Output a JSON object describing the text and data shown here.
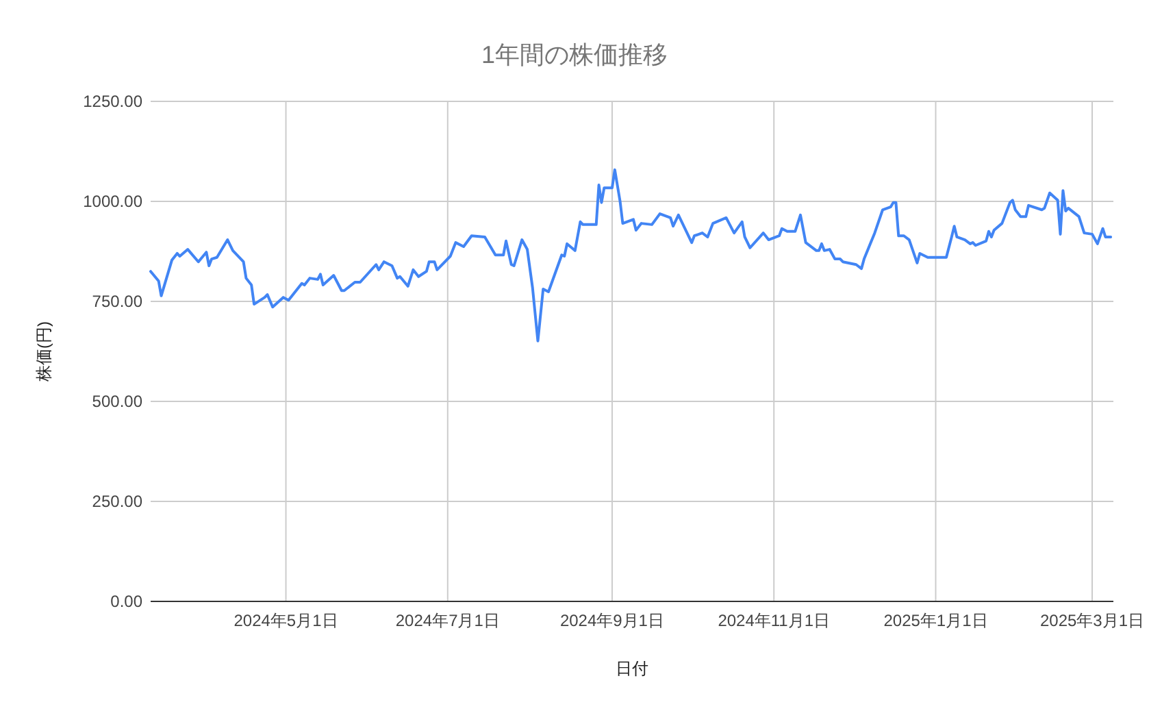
{
  "chart_data": {
    "type": "line",
    "title": "1年間の株価推移",
    "xlabel": "日付",
    "ylabel": "株価(円)",
    "x": [
      "2024-03-11",
      "2024-03-14",
      "2024-03-15",
      "2024-03-19",
      "2024-03-21",
      "2024-03-22",
      "2024-03-25",
      "2024-03-29",
      "2024-04-01",
      "2024-04-02",
      "2024-04-03",
      "2024-04-05",
      "2024-04-09",
      "2024-04-11",
      "2024-04-15",
      "2024-04-16",
      "2024-04-18",
      "2024-04-19",
      "2024-04-23",
      "2024-04-24",
      "2024-04-26",
      "2024-04-30",
      "2024-05-02",
      "2024-05-07",
      "2024-05-08",
      "2024-05-10",
      "2024-05-13",
      "2024-05-14",
      "2024-05-15",
      "2024-05-19",
      "2024-05-22",
      "2024-05-23",
      "2024-05-27",
      "2024-05-29",
      "2024-06-04",
      "2024-06-05",
      "2024-06-07",
      "2024-06-10",
      "2024-06-12",
      "2024-06-13",
      "2024-06-16",
      "2024-06-18",
      "2024-06-20",
      "2024-06-23",
      "2024-06-24",
      "2024-06-26",
      "2024-06-27",
      "2024-07-02",
      "2024-07-04",
      "2024-07-07",
      "2024-07-10",
      "2024-07-15",
      "2024-07-19",
      "2024-07-22",
      "2024-07-23",
      "2024-07-25",
      "2024-07-26",
      "2024-07-29",
      "2024-07-31",
      "2024-08-02",
      "2024-08-04",
      "2024-08-06",
      "2024-08-08",
      "2024-08-13",
      "2024-08-14",
      "2024-08-15",
      "2024-08-18",
      "2024-08-20",
      "2024-08-21",
      "2024-08-26",
      "2024-08-27",
      "2024-08-28",
      "2024-08-29",
      "2024-09-01",
      "2024-09-02",
      "2024-09-04",
      "2024-09-05",
      "2024-09-09",
      "2024-09-10",
      "2024-09-12",
      "2024-09-16",
      "2024-09-19",
      "2024-09-23",
      "2024-09-24",
      "2024-09-26",
      "2024-10-01",
      "2024-10-02",
      "2024-10-05",
      "2024-10-07",
      "2024-10-09",
      "2024-10-14",
      "2024-10-17",
      "2024-10-20",
      "2024-10-21",
      "2024-10-23",
      "2024-10-28",
      "2024-10-30",
      "2024-11-03",
      "2024-11-04",
      "2024-11-06",
      "2024-11-09",
      "2024-11-11",
      "2024-11-13",
      "2024-11-17",
      "2024-11-18",
      "2024-11-19",
      "2024-11-20",
      "2024-11-22",
      "2024-11-24",
      "2024-11-26",
      "2024-11-27",
      "2024-12-02",
      "2024-12-04",
      "2024-12-05",
      "2024-12-09",
      "2024-12-12",
      "2024-12-15",
      "2024-12-16",
      "2024-12-17",
      "2024-12-18",
      "2024-12-20",
      "2024-12-22",
      "2024-12-25",
      "2024-12-26",
      "2024-12-29",
      "2025-01-05",
      "2025-01-07",
      "2025-01-08",
      "2025-01-09",
      "2025-01-12",
      "2025-01-14",
      "2025-01-15",
      "2025-01-16",
      "2025-01-20",
      "2025-01-21",
      "2025-01-22",
      "2025-01-23",
      "2025-01-26",
      "2025-01-29",
      "2025-01-30",
      "2025-01-31",
      "2025-02-02",
      "2025-02-04",
      "2025-02-05",
      "2025-02-10",
      "2025-02-11",
      "2025-02-13",
      "2025-02-16",
      "2025-02-17",
      "2025-02-18",
      "2025-02-19",
      "2025-02-20",
      "2025-02-24",
      "2025-02-26",
      "2025-03-01",
      "2025-03-03",
      "2025-03-05",
      "2025-03-06",
      "2025-03-08"
    ],
    "series": [
      {
        "color": "#4285f4",
        "values": [
          825,
          801,
          764,
          853,
          870,
          863,
          880,
          849,
          873,
          839,
          856,
          860,
          904,
          877,
          849,
          808,
          791,
          743,
          760,
          767,
          736,
          760,
          753,
          795,
          791,
          808,
          805,
          818,
          791,
          815,
          777,
          777,
          798,
          798,
          842,
          829,
          849,
          839,
          808,
          812,
          788,
          829,
          812,
          825,
          849,
          849,
          829,
          863,
          897,
          887,
          914,
          911,
          866,
          866,
          901,
          842,
          839,
          904,
          880,
          784,
          651,
          781,
          774,
          866,
          863,
          894,
          877,
          949,
          942,
          942,
          1041,
          997,
          1034,
          1034,
          1079,
          1000,
          945,
          955,
          928,
          945,
          942,
          969,
          959,
          938,
          966,
          897,
          914,
          921,
          911,
          945,
          959,
          921,
          949,
          911,
          884,
          921,
          904,
          914,
          932,
          925,
          925,
          966,
          897,
          877,
          877,
          894,
          877,
          880,
          856,
          856,
          849,
          842,
          832,
          856,
          921,
          979,
          986,
          997,
          997,
          914,
          914,
          904,
          846,
          870,
          860,
          860,
          911,
          938,
          911,
          904,
          894,
          897,
          890,
          901,
          925,
          911,
          928,
          945,
          997,
          1003,
          979,
          962,
          962,
          990,
          979,
          983,
          1021,
          1003,
          918,
          1027,
          976,
          983,
          962,
          921,
          918,
          894,
          932,
          911,
          911
        ]
      }
    ],
    "xlim": [
      "2024-03-11",
      "2025-03-09"
    ],
    "xticks": [
      {
        "value": "2024-05-01",
        "label": "2024年5月1日"
      },
      {
        "value": "2024-07-01",
        "label": "2024年7月1日"
      },
      {
        "value": "2024-09-01",
        "label": "2024年9月1日"
      },
      {
        "value": "2024-11-01",
        "label": "2024年11月1日"
      },
      {
        "value": "2025-01-01",
        "label": "2025年1月1日"
      },
      {
        "value": "2025-03-01",
        "label": "2025年3月1日"
      }
    ],
    "ylim": [
      0,
      1250
    ],
    "yticks": [
      {
        "value": 0,
        "label": "0.00"
      },
      {
        "value": 250,
        "label": "250.00"
      },
      {
        "value": 500,
        "label": "500.00"
      },
      {
        "value": 750,
        "label": "750.00"
      },
      {
        "value": 1000,
        "label": "1000.00"
      },
      {
        "value": 1250,
        "label": "1250.00"
      }
    ],
    "grid": true,
    "marker": "none",
    "line_style": "solid"
  }
}
